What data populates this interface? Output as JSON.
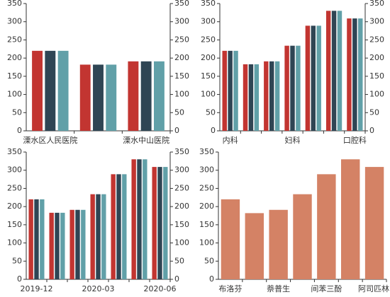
{
  "chart_data": [
    {
      "type": "bar",
      "categories": [
        "溧水区人民医院",
        null,
        "溧水中山医院"
      ],
      "series": [
        {
          "color": "#c23531",
          "values": [
            220,
            182,
            191
          ]
        },
        {
          "color": "#2f4554",
          "values": [
            220,
            182,
            191
          ]
        },
        {
          "color": "#61a0a8",
          "values": [
            220,
            182,
            191
          ]
        }
      ],
      "ylim": [
        0,
        350
      ],
      "yticks": [
        0,
        50,
        100,
        150,
        200,
        250,
        300,
        350
      ],
      "y2lim": [
        0,
        350
      ],
      "y2ticks": [
        0,
        50,
        100,
        150,
        200,
        250,
        300,
        350
      ]
    },
    {
      "type": "bar",
      "categories": [
        "内科",
        null,
        null,
        "妇科",
        null,
        null,
        "口腔科"
      ],
      "series": [
        {
          "color": "#c23531",
          "values": [
            220,
            183,
            191,
            234,
            289,
            330,
            309
          ]
        },
        {
          "color": "#2f4554",
          "values": [
            220,
            183,
            191,
            234,
            289,
            330,
            309
          ]
        },
        {
          "color": "#61a0a8",
          "values": [
            220,
            183,
            191,
            234,
            289,
            330,
            309
          ]
        }
      ],
      "ylim": [
        0,
        350
      ],
      "yticks": [
        0,
        50,
        100,
        150,
        200,
        250,
        300,
        350
      ],
      "y2lim": [
        0,
        350
      ],
      "y2ticks": [
        0,
        50,
        100,
        150,
        200,
        250,
        300,
        350
      ]
    },
    {
      "type": "bar",
      "categories": [
        "2019-12",
        null,
        null,
        "2020-03",
        null,
        null,
        "2020-06"
      ],
      "series": [
        {
          "color": "#c23531",
          "values": [
            220,
            183,
            191,
            234,
            289,
            330,
            309
          ]
        },
        {
          "color": "#2f4554",
          "values": [
            220,
            183,
            191,
            234,
            289,
            330,
            309
          ]
        },
        {
          "color": "#61a0a8",
          "values": [
            220,
            183,
            191,
            234,
            289,
            330,
            309
          ]
        }
      ],
      "ylim": [
        0,
        350
      ],
      "yticks": [
        0,
        50,
        100,
        150,
        200,
        250,
        300,
        350
      ],
      "y2lim": [
        0,
        350
      ],
      "y2ticks": [
        0,
        50,
        100,
        150,
        200,
        250,
        300,
        350
      ]
    },
    {
      "type": "bar",
      "categories": [
        "布洛芬",
        null,
        "萘普生",
        null,
        "间苯三酚",
        null,
        "阿司匹林"
      ],
      "color": "#d48265",
      "values": [
        220,
        182,
        191,
        234,
        289,
        330,
        309
      ],
      "ylim": [
        0,
        350
      ],
      "yticks": [
        0,
        50,
        100,
        150,
        200,
        250,
        300,
        350
      ]
    }
  ]
}
